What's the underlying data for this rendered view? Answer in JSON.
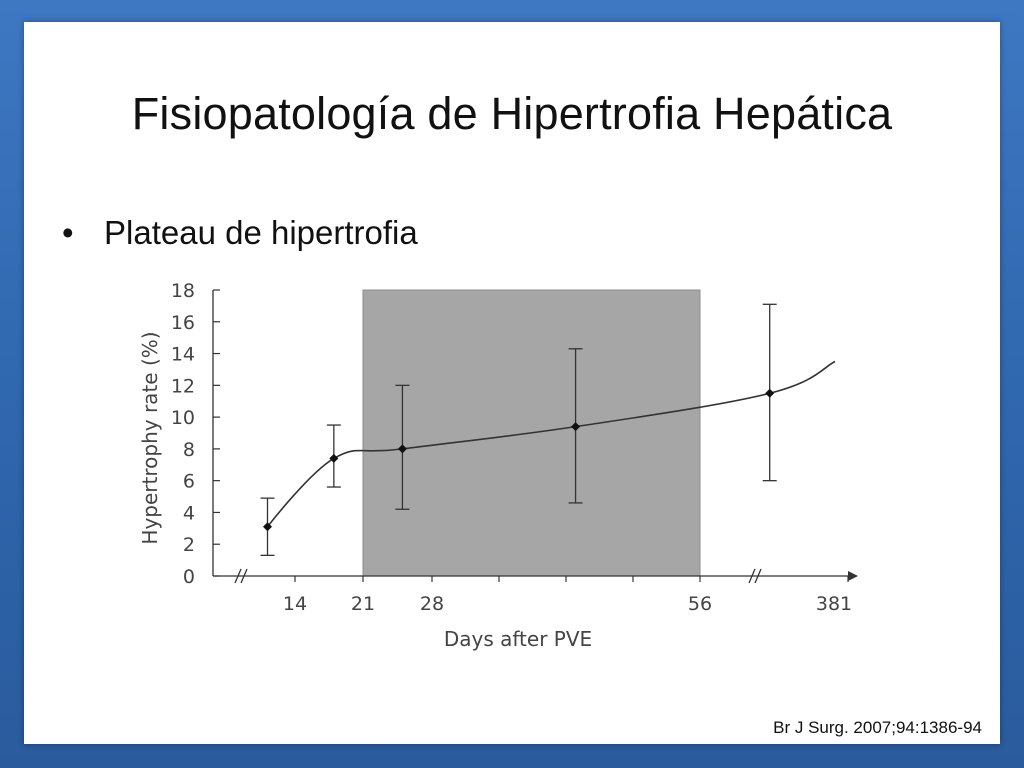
{
  "slide": {
    "title": "Fisiopatología de Hipertrofia Hepática",
    "bullets": [
      "Plateau de hipertrofia"
    ],
    "citation": "Br J Surg. 2007;94:1386-94"
  },
  "colors": {
    "background_border": "#2f66ad",
    "shaded_region": "#a6a6a6",
    "line": "#333333"
  },
  "chart_data": {
    "type": "line",
    "xlabel": "Days after PVE",
    "ylabel": "Hypertrophy rate (%)",
    "ylim": [
      0,
      18
    ],
    "yticks": [
      0,
      2,
      4,
      6,
      8,
      10,
      12,
      14,
      16,
      18
    ],
    "xtick_labels": [
      "14",
      "21",
      "28",
      "56",
      "381"
    ],
    "x_axis_breaks": "before 14 and between 56 and 381",
    "shaded_region": {
      "from_day": 21,
      "to_day": 56
    },
    "points": [
      {
        "day": 11,
        "value": 3.1,
        "err_low": 1.3,
        "err_high": 4.9
      },
      {
        "day": 18,
        "value": 7.4,
        "err_low": 5.6,
        "err_high": 9.5
      },
      {
        "day": 25,
        "value": 8.0,
        "err_low": 4.2,
        "err_high": 12.0
      },
      {
        "day": 43,
        "value": 9.4,
        "err_low": 4.6,
        "err_high": 14.3
      },
      {
        "day": 64,
        "value": 11.5,
        "err_low": 6.0,
        "err_high": 17.1
      }
    ],
    "trend_line_end": {
      "day": 72,
      "value": 13.5
    },
    "grid": false,
    "legend": "none"
  }
}
